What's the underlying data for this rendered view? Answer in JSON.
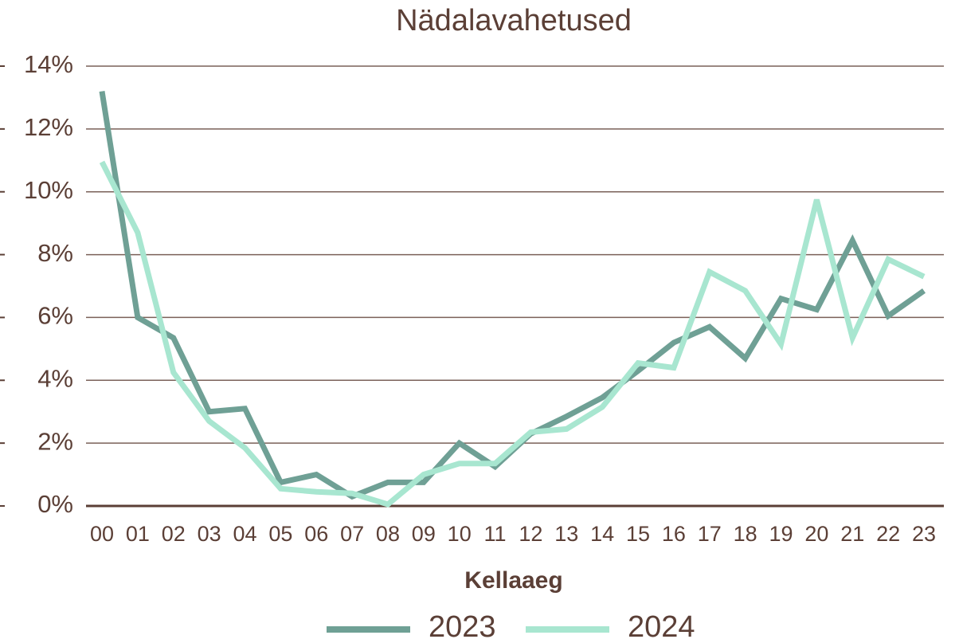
{
  "chart_data": {
    "type": "line",
    "title": "Nädalavahetused",
    "x_label": "Kellaaeg",
    "categories": [
      "00",
      "01",
      "02",
      "03",
      "04",
      "05",
      "06",
      "07",
      "08",
      "09",
      "10",
      "11",
      "12",
      "13",
      "14",
      "15",
      "16",
      "17",
      "18",
      "19",
      "20",
      "21",
      "22",
      "23"
    ],
    "series": [
      {
        "name": "2023",
        "color": "#6fa095",
        "values": [
          13.2,
          6.0,
          5.35,
          3.0,
          3.1,
          0.75,
          1.0,
          0.3,
          0.75,
          0.75,
          2.0,
          1.25,
          2.3,
          2.85,
          3.45,
          4.3,
          5.2,
          5.7,
          4.7,
          6.6,
          6.25,
          8.45,
          6.05,
          6.85
        ]
      },
      {
        "name": "2024",
        "color": "#a8e6d0",
        "values": [
          10.95,
          8.7,
          4.25,
          2.7,
          1.85,
          0.55,
          0.45,
          0.4,
          0.05,
          1.0,
          1.35,
          1.35,
          2.35,
          2.45,
          3.15,
          4.55,
          4.4,
          7.45,
          6.85,
          5.15,
          9.75,
          5.35,
          7.85,
          7.3
        ]
      }
    ],
    "ylim": [
      0,
      14
    ],
    "yticks": [
      {
        "value": 0,
        "label": "0%"
      },
      {
        "value": 2,
        "label": "2%"
      },
      {
        "value": 4,
        "label": "4%"
      },
      {
        "value": 6,
        "label": "6%"
      },
      {
        "value": 8,
        "label": "8%"
      },
      {
        "value": 10,
        "label": "10%"
      },
      {
        "value": 12,
        "label": "12%"
      },
      {
        "value": 14,
        "label": "14%"
      }
    ],
    "grid": true
  }
}
